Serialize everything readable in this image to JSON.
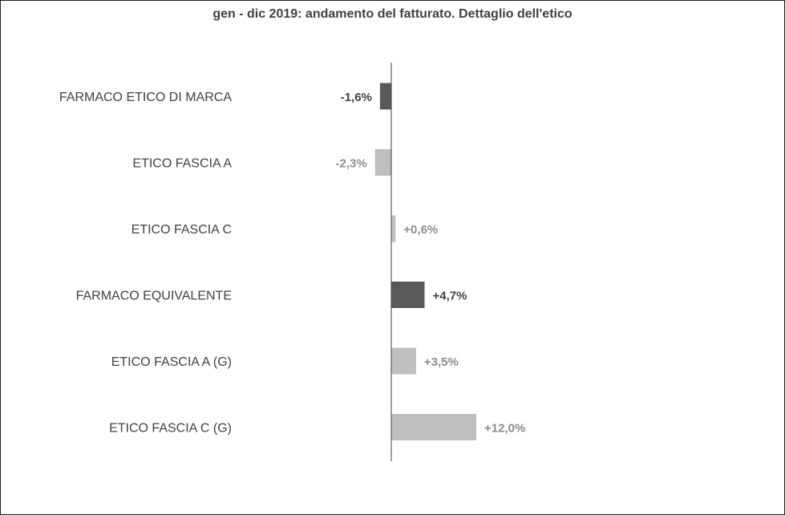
{
  "chart_data": {
    "type": "bar",
    "orientation": "horizontal",
    "title": "gen - dic 2019:  andamento del fatturato. Dettaglio dell'etico",
    "xlabel": "",
    "ylabel": "",
    "grid": false,
    "legend": "none",
    "xlim": [
      -3,
      12
    ],
    "categories": [
      "FARMACO ETICO DI MARCA",
      "ETICO FASCIA A",
      "ETICO FASCIA C",
      "FARMACO EQUIVALENTE",
      "ETICO FASCIA A (G)",
      "ETICO FASCIA C (G)"
    ],
    "values": [
      -1.6,
      -2.3,
      0.6,
      4.7,
      3.5,
      12.0
    ],
    "value_labels": [
      "-1,6%",
      "-2,3%",
      "+0,6%",
      "+4,7%",
      "+3,5%",
      "+12,0%"
    ],
    "emphasis": [
      true,
      false,
      false,
      true,
      false,
      false
    ],
    "colors": {
      "emphasis_bar": "#595959",
      "normal_bar": "#bfbfbf",
      "emphasis_label": "#404040",
      "normal_label": "#8c8c8c",
      "axis": "#404040"
    }
  }
}
